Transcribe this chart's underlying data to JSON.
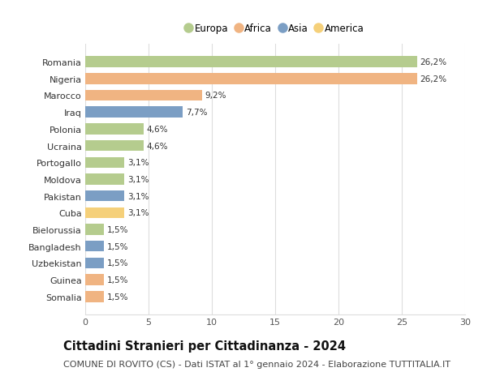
{
  "countries": [
    "Somalia",
    "Guinea",
    "Uzbekistan",
    "Bangladesh",
    "Bielorussia",
    "Cuba",
    "Pakistan",
    "Moldova",
    "Portogallo",
    "Ucraina",
    "Polonia",
    "Iraq",
    "Marocco",
    "Nigeria",
    "Romania"
  ],
  "values": [
    1.5,
    1.5,
    1.5,
    1.5,
    1.5,
    3.1,
    3.1,
    3.1,
    3.1,
    4.6,
    4.6,
    7.7,
    9.2,
    26.2,
    26.2
  ],
  "labels": [
    "1,5%",
    "1,5%",
    "1,5%",
    "1,5%",
    "1,5%",
    "3,1%",
    "3,1%",
    "3,1%",
    "3,1%",
    "4,6%",
    "4,6%",
    "7,7%",
    "9,2%",
    "26,2%",
    "26,2%"
  ],
  "continents": [
    "Africa",
    "Africa",
    "Asia",
    "Asia",
    "Europa",
    "America",
    "Asia",
    "Europa",
    "Europa",
    "Europa",
    "Europa",
    "Asia",
    "Africa",
    "Africa",
    "Europa"
  ],
  "continent_colors": {
    "Europa": "#b5cc8e",
    "Africa": "#f0b482",
    "Asia": "#7b9ec4",
    "America": "#f5d07a"
  },
  "legend_items": [
    "Europa",
    "Africa",
    "Asia",
    "America"
  ],
  "legend_colors": [
    "#b5cc8e",
    "#f0b482",
    "#7b9ec4",
    "#f5d07a"
  ],
  "title": "Cittadini Stranieri per Cittadinanza - 2024",
  "subtitle": "COMUNE DI ROVITO (CS) - Dati ISTAT al 1° gennaio 2024 - Elaborazione TUTTITALIA.IT",
  "xlim": [
    0,
    30
  ],
  "xticks": [
    0,
    5,
    10,
    15,
    20,
    25,
    30
  ],
  "background_color": "#ffffff",
  "grid_color": "#dddddd",
  "bar_height": 0.65,
  "title_fontsize": 10.5,
  "subtitle_fontsize": 8,
  "label_fontsize": 7.5,
  "tick_fontsize": 8,
  "legend_fontsize": 8.5
}
